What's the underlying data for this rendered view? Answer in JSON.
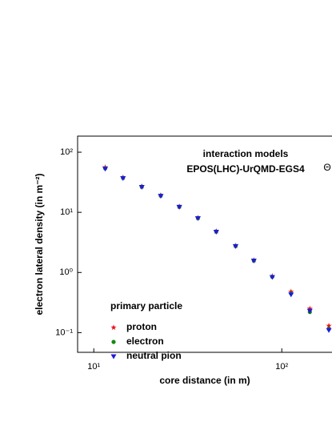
{
  "chart_data": {
    "type": "scatter",
    "xlabel": "core distance (in m)",
    "ylabel": "electron lateral density (in m⁻²)",
    "annotations": [
      "interaction models",
      "EPOS(LHC)-UrQMD-EGS4",
      "Θ"
    ],
    "legend_title": "primary particle",
    "log_x": true,
    "log_y": true,
    "xlim": [
      8.2,
      185
    ],
    "ylim": [
      0.047,
      185
    ],
    "xticks": [
      {
        "value": 10,
        "label": "10¹"
      },
      {
        "value": 100,
        "label": "10²"
      }
    ],
    "yticks": [
      {
        "value": 0.1,
        "label": "10⁻¹"
      },
      {
        "value": 1,
        "label": "10⁰"
      },
      {
        "value": 10,
        "label": "10¹"
      },
      {
        "value": 100,
        "label": "10²"
      }
    ],
    "x": [
      11.5,
      14.3,
      18,
      22.7,
      28.5,
      35.8,
      44.8,
      56.8,
      71,
      89,
      112,
      141,
      178
    ],
    "series": [
      {
        "name": "proton",
        "color": "#e8101a",
        "marker": "star",
        "values": [
          56,
          38,
          27,
          19.2,
          12.5,
          8.1,
          4.85,
          2.78,
          1.6,
          0.87,
          0.48,
          0.25,
          0.13
        ]
      },
      {
        "name": "electron",
        "color": "#138a13",
        "marker": "circle",
        "values": [
          54,
          37.5,
          26.7,
          19,
          12.4,
          8.05,
          4.8,
          2.76,
          1.58,
          0.85,
          0.45,
          0.22,
          0.115
        ]
      },
      {
        "name": "neutral pion",
        "color": "#1c1cd8",
        "marker": "triangle-down",
        "values": [
          53,
          37,
          26.4,
          18.8,
          12.3,
          8,
          4.75,
          2.74,
          1.57,
          0.84,
          0.43,
          0.23,
          0.11
        ]
      }
    ]
  }
}
